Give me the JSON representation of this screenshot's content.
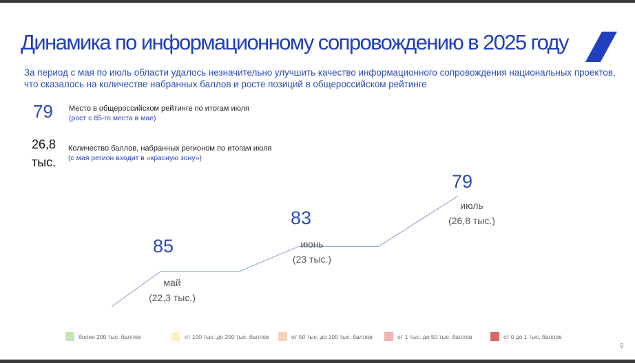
{
  "slide": {
    "title": "Динамика по информационному сопровождению в 2025 году",
    "subtitle": "За период с мая по июль области удалось незначительно улучшить качество информационного сопровождения национальных проектов, что сказалось на количестве набранных баллов и росте позиций в общероссийском рейтинге",
    "page_number": "9",
    "accent_color": "#1f3fbf"
  },
  "stats": [
    {
      "value": "79",
      "label": "Место в общероссийском рейтинге по итогам июля",
      "note": "(рост с 85-го места в мае)"
    },
    {
      "value_line1": "26,8",
      "value_line2": "тыс.",
      "label": "Количество баллов, набранных регионом по итогам июля",
      "note": "(с мая регион входит в «красную зону»)"
    }
  ],
  "chart_data": {
    "type": "line",
    "categories": [
      "май",
      "июнь",
      "июль"
    ],
    "rank": [
      85,
      83,
      79
    ],
    "score_labels": [
      "(22,3 тыс.)",
      "(23 тыс.)",
      "(26,8 тыс.)"
    ],
    "score_thousands": [
      22.3,
      23,
      26.8
    ],
    "line_color": "#7f9fd4"
  },
  "legend": [
    {
      "label": "более 200 тыс. баллов",
      "color": "#c6e5b8"
    },
    {
      "label": "от 100 тыс. до 200 тыс. баллов",
      "color": "#fbefc6"
    },
    {
      "label": "от 50 тыс. до 100 тыс. баллов",
      "color": "#f7d2bb"
    },
    {
      "label": "от 1 тыс. до 50 тыс. баллов",
      "color": "#f3b3b5"
    },
    {
      "label": "от 0 до 1 тыс. баллов",
      "color": "#d9676b"
    }
  ]
}
